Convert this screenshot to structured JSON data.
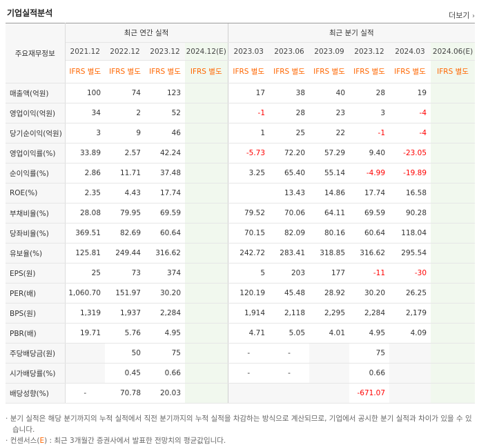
{
  "header": {
    "title": "기업실적분석",
    "more_label": "더보기"
  },
  "table": {
    "corner_label": "주요재무정보",
    "groups": {
      "annual": "최근 연간 실적",
      "quarter": "최근 분기 실적"
    },
    "periods": [
      "2021.12",
      "2022.12",
      "2023.12",
      "2024.12(E)",
      "2023.03",
      "2023.06",
      "2023.09",
      "2023.12",
      "2024.03",
      "2024.06(E)"
    ],
    "basis": [
      "IFRS 별도",
      "IFRS 별도",
      "IFRS 별도",
      "IFRS 별도",
      "IFRS 별도",
      "IFRS 별도",
      "IFRS 별도",
      "IFRS 별도",
      "IFRS 별도",
      "IFRS 별도"
    ],
    "rows": [
      {
        "label": "매출액(억원)",
        "values": [
          "100",
          "74",
          "123",
          "",
          "17",
          "38",
          "40",
          "28",
          "19",
          ""
        ]
      },
      {
        "label": "영업이익(억원)",
        "values": [
          "34",
          "2",
          "52",
          "",
          "-1",
          "28",
          "23",
          "3",
          "-4",
          ""
        ]
      },
      {
        "label": "당기순이익(억원)",
        "values": [
          "3",
          "9",
          "46",
          "",
          "1",
          "25",
          "22",
          "-1",
          "-4",
          ""
        ]
      },
      {
        "label": "영업이익률(%)",
        "values": [
          "33.89",
          "2.57",
          "42.24",
          "",
          "-5.73",
          "72.20",
          "57.29",
          "9.40",
          "-23.05",
          ""
        ]
      },
      {
        "label": "순이익률(%)",
        "values": [
          "2.86",
          "11.71",
          "37.48",
          "",
          "3.25",
          "65.40",
          "55.14",
          "-4.99",
          "-19.89",
          ""
        ]
      },
      {
        "label": "ROE(%)",
        "values": [
          "2.35",
          "4.43",
          "17.74",
          "",
          "",
          "13.43",
          "14.86",
          "17.74",
          "16.58",
          ""
        ]
      },
      {
        "label": "부채비율(%)",
        "values": [
          "28.08",
          "79.95",
          "69.59",
          "",
          "79.52",
          "70.06",
          "64.11",
          "69.59",
          "90.28",
          ""
        ]
      },
      {
        "label": "당좌비율(%)",
        "values": [
          "369.51",
          "82.69",
          "60.64",
          "",
          "70.15",
          "82.09",
          "80.16",
          "60.64",
          "118.04",
          ""
        ]
      },
      {
        "label": "유보율(%)",
        "values": [
          "125.81",
          "249.44",
          "316.62",
          "",
          "242.72",
          "283.41",
          "318.85",
          "316.62",
          "295.54",
          ""
        ]
      },
      {
        "label": "EPS(원)",
        "values": [
          "25",
          "73",
          "374",
          "",
          "5",
          "203",
          "177",
          "-11",
          "-30",
          ""
        ]
      },
      {
        "label": "PER(배)",
        "values": [
          "1,060.70",
          "151.97",
          "30.20",
          "",
          "120.19",
          "45.48",
          "28.92",
          "30.20",
          "26.25",
          ""
        ]
      },
      {
        "label": "BPS(원)",
        "values": [
          "1,319",
          "1,937",
          "2,284",
          "",
          "1,914",
          "2,118",
          "2,295",
          "2,284",
          "2,179",
          ""
        ]
      },
      {
        "label": "PBR(배)",
        "values": [
          "19.71",
          "5.76",
          "4.95",
          "",
          "4.71",
          "5.05",
          "4.01",
          "4.95",
          "4.09",
          ""
        ]
      },
      {
        "label": "주당배당금(원)",
        "values": [
          "",
          "50",
          "75",
          "",
          "-",
          "-",
          "",
          "75",
          "",
          ""
        ]
      },
      {
        "label": "시가배당률(%)",
        "values": [
          "",
          "0.45",
          "0.66",
          "",
          "-",
          "-",
          "",
          "0.66",
          "",
          ""
        ]
      },
      {
        "label": "배당성향(%)",
        "values": [
          "-",
          "70.78",
          "20.03",
          "",
          "",
          "",
          "",
          "-671.07",
          "",
          ""
        ]
      }
    ]
  },
  "notes": {
    "line1": "분기 실적은 해당 분기까지의 누적 실적에서 직전 분기까지의 누적 실적을 차감하는 방식으로 계산되므로, 기업에서 공시한 분기 실적과 차이가 있을 수 있습니다.",
    "line2_prefix": "컨센서스(",
    "line2_em": "E",
    "line2_suffix": ") : 최근 3개월간 증권사에서 발표한 전망치의 평균값입니다."
  },
  "colors": {
    "negative": "#ff0000",
    "accent": "#ff6600",
    "estimate_bg": "#f1f8ee",
    "label_bg": "#f7f7f7"
  }
}
